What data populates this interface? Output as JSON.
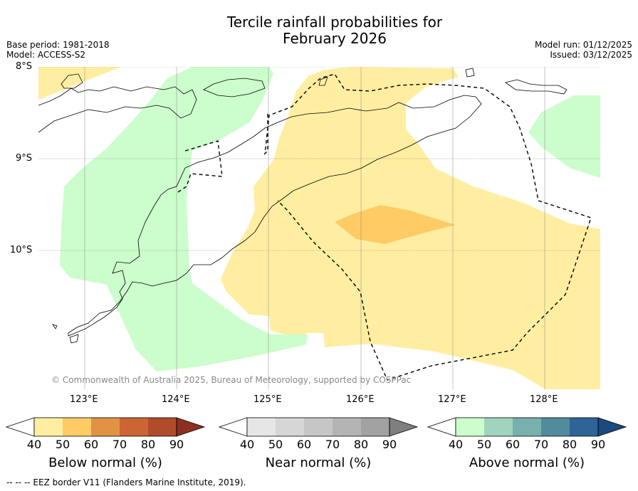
{
  "title_line1": "Tercile rainfall probabilities for",
  "title_line2": "February 2026",
  "base_period": "Base period: 1981-2018",
  "model": "Model: ACCESS-S2",
  "model_run": "Model run: 01/12/2025",
  "issued": "Issued: 03/12/2025",
  "lat_labels": [
    "8°S",
    "9°S",
    "10°S"
  ],
  "lon_labels": [
    "123°E",
    "124°E",
    "125°E",
    "126°E",
    "127°E",
    "128°E"
  ],
  "copyright": "© Commonwealth of Australia 2025, Bureau of Meteorology, supported by COSPPac",
  "colorbars": [
    {
      "title": "Below normal (%)",
      "ticks": [
        "40",
        "50",
        "60",
        "70",
        "80",
        "90"
      ],
      "colors": [
        "#ffeea1",
        "#fecb65",
        "#e19243",
        "#cc6434",
        "#b04c2a",
        "#8d2f21"
      ]
    },
    {
      "title": "Near normal (%)",
      "ticks": [
        "40",
        "50",
        "60",
        "70",
        "80",
        "90"
      ],
      "colors": [
        "#e6e6e6",
        "#d6d6d6",
        "#c6c6c6",
        "#b4b4b4",
        "#a2a2a2",
        "#7f7f7f"
      ]
    },
    {
      "title": "Above normal (%)",
      "ticks": [
        "40",
        "50",
        "60",
        "70",
        "80",
        "90"
      ],
      "colors": [
        "#ccfdcc",
        "#a1d4bc",
        "#78b0ad",
        "#4f8c9c",
        "#2e6497",
        "#1a4a7e"
      ]
    }
  ],
  "map_colors": {
    "below_50": "#ffeea1",
    "below_60": "#fecb65",
    "above_50": "#ccfdcc"
  },
  "footnote": "--  --  -- EEZ border V11 (Flanders Marine Institute, 2019)."
}
